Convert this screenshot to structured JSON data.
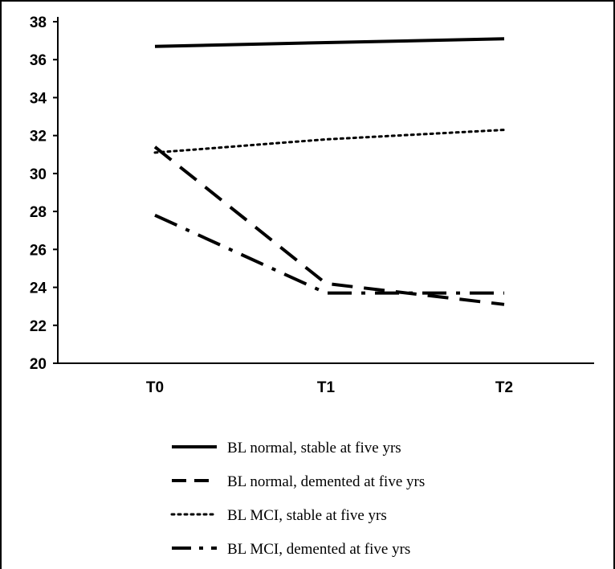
{
  "chart_data": {
    "type": "line",
    "title": "",
    "xlabel": "",
    "ylabel": "",
    "categories": [
      "T0",
      "T1",
      "T2"
    ],
    "ylim": [
      20,
      38
    ],
    "yticks": [
      20,
      22,
      24,
      26,
      28,
      30,
      32,
      34,
      36,
      38
    ],
    "grid": false,
    "legend_position": "bottom",
    "series": [
      {
        "name": "BL normal, stable at five yrs",
        "values": [
          36.7,
          36.9,
          37.1
        ],
        "style": "solid"
      },
      {
        "name": "BL normal, demented at five yrs",
        "values": [
          31.4,
          24.2,
          23.1
        ],
        "style": "dashed"
      },
      {
        "name": "BL MCI, stable at five yrs",
        "values": [
          31.1,
          31.8,
          32.3
        ],
        "style": "dotted"
      },
      {
        "name": "BL MCI, demented at five yrs",
        "values": [
          27.8,
          23.7,
          23.7
        ],
        "style": "dash-dot"
      }
    ],
    "colors": {
      "line": "#000000",
      "axis": "#000000"
    }
  }
}
